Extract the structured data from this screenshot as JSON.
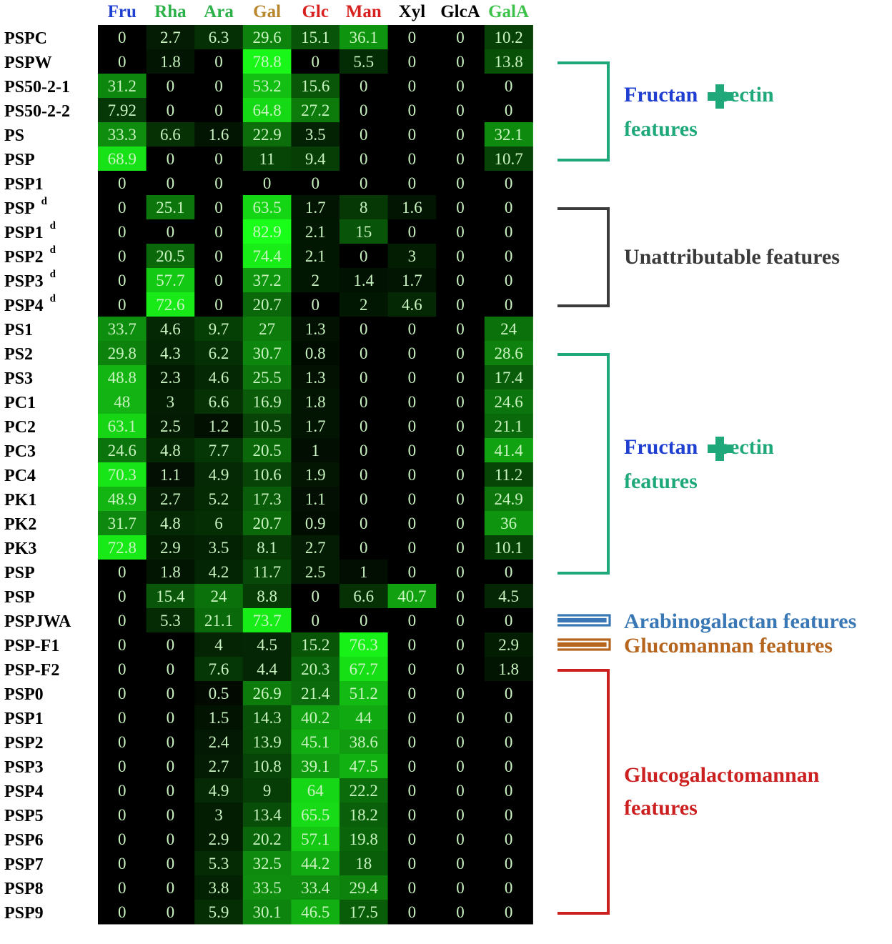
{
  "chart_data": {
    "type": "heatmap",
    "columns": [
      {
        "label": "Fru",
        "color": "#1f3fd1"
      },
      {
        "label": "Rha",
        "color": "#2db24a"
      },
      {
        "label": "Ara",
        "color": "#2db24a"
      },
      {
        "label": "Gal",
        "color": "#b8862d"
      },
      {
        "label": "Glc",
        "color": "#d8201f"
      },
      {
        "label": "Man",
        "color": "#d8201f"
      },
      {
        "label": "Xyl",
        "color": "#000000"
      },
      {
        "label": "GlcA",
        "color": "#000000"
      },
      {
        "label": "GalA",
        "color": "#3cc24a"
      }
    ],
    "rows": [
      {
        "label": "PSPC",
        "sup": "",
        "values": [
          "0",
          "2.7",
          "6.3",
          "29.6",
          "15.1",
          "36.1",
          "0",
          "0",
          "10.2"
        ]
      },
      {
        "label": "PSPW",
        "sup": "",
        "values": [
          "0",
          "1.8",
          "0",
          "78.8",
          "0",
          "5.5",
          "0",
          "0",
          "13.8"
        ]
      },
      {
        "label": "PS50-2-1",
        "sup": "",
        "values": [
          "31.2",
          "0",
          "0",
          "53.2",
          "15.6",
          "0",
          "0",
          "0",
          "0"
        ]
      },
      {
        "label": "PS50-2-2",
        "sup": "",
        "values": [
          "7.92",
          "0",
          "0",
          "64.8",
          "27.2",
          "0",
          "0",
          "0",
          "0"
        ]
      },
      {
        "label": "PS",
        "sup": "",
        "values": [
          "33.3",
          "6.6",
          "1.6",
          "22.9",
          "3.5",
          "0",
          "0",
          "0",
          "32.1"
        ]
      },
      {
        "label": "PSP",
        "sup": "",
        "values": [
          "68.9",
          "0",
          "0",
          "11",
          "9.4",
          "0",
          "0",
          "0",
          "10.7"
        ]
      },
      {
        "label": "PSP1",
        "sup": "",
        "values": [
          "0",
          "0",
          "0",
          "0",
          "0",
          "0",
          "0",
          "0",
          "0"
        ]
      },
      {
        "label": "PSP",
        "sup": "d",
        "values": [
          "0",
          "25.1",
          "0",
          "63.5",
          "1.7",
          "8",
          "1.6",
          "0",
          "0"
        ]
      },
      {
        "label": "PSP1",
        "sup": "d",
        "values": [
          "0",
          "0",
          "0",
          "82.9",
          "2.1",
          "15",
          "0",
          "0",
          "0"
        ]
      },
      {
        "label": "PSP2",
        "sup": "d",
        "values": [
          "0",
          "20.5",
          "0",
          "74.4",
          "2.1",
          "0",
          "3",
          "0",
          "0"
        ]
      },
      {
        "label": "PSP3",
        "sup": "d",
        "values": [
          "0",
          "57.7",
          "0",
          "37.2",
          "2",
          "1.4",
          "1.7",
          "0",
          "0"
        ]
      },
      {
        "label": "PSP4",
        "sup": "d",
        "values": [
          "0",
          "72.6",
          "0",
          "20.7",
          "0",
          "2",
          "4.6",
          "0",
          "0"
        ]
      },
      {
        "label": "PS1",
        "sup": "",
        "values": [
          "33.7",
          "4.6",
          "9.7",
          "27",
          "1.3",
          "0",
          "0",
          "0",
          "24"
        ]
      },
      {
        "label": "PS2",
        "sup": "",
        "values": [
          "29.8",
          "4.3",
          "6.2",
          "30.7",
          "0.8",
          "0",
          "0",
          "0",
          "28.6"
        ]
      },
      {
        "label": "PS3",
        "sup": "",
        "values": [
          "48.8",
          "2.3",
          "4.6",
          "25.5",
          "1.3",
          "0",
          "0",
          "0",
          "17.4"
        ]
      },
      {
        "label": "PC1",
        "sup": "",
        "values": [
          "48",
          "3",
          "6.6",
          "16.9",
          "1.8",
          "0",
          "0",
          "0",
          "24.6"
        ]
      },
      {
        "label": "PC2",
        "sup": "",
        "values": [
          "63.1",
          "2.5",
          "1.2",
          "10.5",
          "1.7",
          "0",
          "0",
          "0",
          "21.1"
        ]
      },
      {
        "label": "PC3",
        "sup": "",
        "values": [
          "24.6",
          "4.8",
          "7.7",
          "20.5",
          "1",
          "0",
          "0",
          "0",
          "41.4"
        ]
      },
      {
        "label": "PC4",
        "sup": "",
        "values": [
          "70.3",
          "1.1",
          "4.9",
          "10.6",
          "1.9",
          "0",
          "0",
          "0",
          "11.2"
        ]
      },
      {
        "label": "PK1",
        "sup": "",
        "values": [
          "48.9",
          "2.7",
          "5.2",
          "17.3",
          "1.1",
          "0",
          "0",
          "0",
          "24.9"
        ]
      },
      {
        "label": "PK2",
        "sup": "",
        "values": [
          "31.7",
          "4.8",
          "6",
          "20.7",
          "0.9",
          "0",
          "0",
          "0",
          "36"
        ]
      },
      {
        "label": "PK3",
        "sup": "",
        "values": [
          "72.8",
          "2.9",
          "3.5",
          "8.1",
          "2.7",
          "0",
          "0",
          "0",
          "10.1"
        ]
      },
      {
        "label": "PSP",
        "sup": "",
        "values": [
          "0",
          "1.8",
          "4.2",
          "11.7",
          "2.5",
          "1",
          "0",
          "0",
          "0"
        ]
      },
      {
        "label": "PSP",
        "sup": "",
        "values": [
          "0",
          "15.4",
          "24",
          "8.8",
          "0",
          "6.6",
          "40.7",
          "0",
          "4.5"
        ]
      },
      {
        "label": "PSPJWA",
        "sup": "",
        "values": [
          "0",
          "5.3",
          "21.1",
          "73.7",
          "0",
          "0",
          "0",
          "0",
          "0"
        ]
      },
      {
        "label": "PSP-F1",
        "sup": "",
        "values": [
          "0",
          "0",
          "4",
          "4.5",
          "15.2",
          "76.3",
          "0",
          "0",
          "2.9"
        ]
      },
      {
        "label": "PSP-F2",
        "sup": "",
        "values": [
          "0",
          "0",
          "7.6",
          "4.4",
          "20.3",
          "67.7",
          "0",
          "0",
          "1.8"
        ]
      },
      {
        "label": "PSP0",
        "sup": "",
        "values": [
          "0",
          "0",
          "0.5",
          "26.9",
          "21.4",
          "51.2",
          "0",
          "0",
          "0"
        ]
      },
      {
        "label": "PSP1",
        "sup": "",
        "values": [
          "0",
          "0",
          "1.5",
          "14.3",
          "40.2",
          "44",
          "0",
          "0",
          "0"
        ]
      },
      {
        "label": "PSP2",
        "sup": "",
        "values": [
          "0",
          "0",
          "2.4",
          "13.9",
          "45.1",
          "38.6",
          "0",
          "0",
          "0"
        ]
      },
      {
        "label": "PSP3",
        "sup": "",
        "values": [
          "0",
          "0",
          "2.7",
          "10.8",
          "39.1",
          "47.5",
          "0",
          "0",
          "0"
        ]
      },
      {
        "label": "PSP4",
        "sup": "",
        "values": [
          "0",
          "0",
          "4.9",
          "9",
          "64",
          "22.2",
          "0",
          "0",
          "0"
        ]
      },
      {
        "label": "PSP5",
        "sup": "",
        "values": [
          "0",
          "0",
          "3",
          "13.4",
          "65.5",
          "18.2",
          "0",
          "0",
          "0"
        ]
      },
      {
        "label": "PSP6",
        "sup": "",
        "values": [
          "0",
          "0",
          "2.9",
          "20.2",
          "57.1",
          "19.8",
          "0",
          "0",
          "0"
        ]
      },
      {
        "label": "PSP7",
        "sup": "",
        "values": [
          "0",
          "0",
          "5.3",
          "32.5",
          "44.2",
          "18",
          "0",
          "0",
          "0"
        ]
      },
      {
        "label": "PSP8",
        "sup": "",
        "values": [
          "0",
          "0",
          "3.8",
          "33.5",
          "33.4",
          "29.4",
          "0",
          "0",
          "0"
        ]
      },
      {
        "label": "PSP9",
        "sup": "",
        "values": [
          "0",
          "0",
          "5.9",
          "30.1",
          "46.5",
          "17.5",
          "0",
          "0",
          "0"
        ]
      }
    ],
    "groups": [
      {
        "first_row": 1,
        "last_row": 5,
        "bracket": "square",
        "color": "#1fa87a",
        "line1": [
          {
            "text": "Fructan",
            "color": "#1f3fd1"
          },
          {
            "plus": true
          },
          {
            "text": "pectin",
            "color": "#1fa87a"
          }
        ],
        "line2": [
          {
            "text": "features",
            "color": "#1fa87a"
          }
        ]
      },
      {
        "first_row": 7,
        "last_row": 11,
        "bracket": "square",
        "color": "#3a3a3a",
        "line1": [
          {
            "text": "Unattributable features",
            "color": "#3a3a3a"
          }
        ],
        "line2": []
      },
      {
        "first_row": 13,
        "last_row": 22,
        "bracket": "square",
        "color": "#1fa87a",
        "line1": [
          {
            "text": "Fructan",
            "color": "#1f3fd1"
          },
          {
            "plus": true
          },
          {
            "text": "pectin",
            "color": "#1fa87a"
          }
        ],
        "line2": [
          {
            "text": "features",
            "color": "#1fa87a"
          }
        ]
      },
      {
        "first_row": 24,
        "last_row": 24,
        "bracket": "double",
        "color": "#3a78b5",
        "line1": [
          {
            "text": "Arabinogalactan features",
            "color": "#3a78b5"
          }
        ],
        "line2": []
      },
      {
        "first_row": 25,
        "last_row": 25,
        "bracket": "double",
        "color": "#b5651d",
        "line1": [
          {
            "text": "Glucomannan features",
            "color": "#b5651d"
          }
        ],
        "line2": []
      },
      {
        "first_row": 26,
        "last_row": 36,
        "bracket": "square",
        "color": "#cc1f1f",
        "line1": [
          {
            "text": "Glucogalactomannan",
            "color": "#cc1f1f"
          }
        ],
        "line2": [
          {
            "text": "features",
            "color": "#cc1f1f"
          }
        ]
      }
    ],
    "color_scale": {
      "low": "#000000",
      "high": "#33ff33",
      "min": 0,
      "max": 83
    }
  }
}
